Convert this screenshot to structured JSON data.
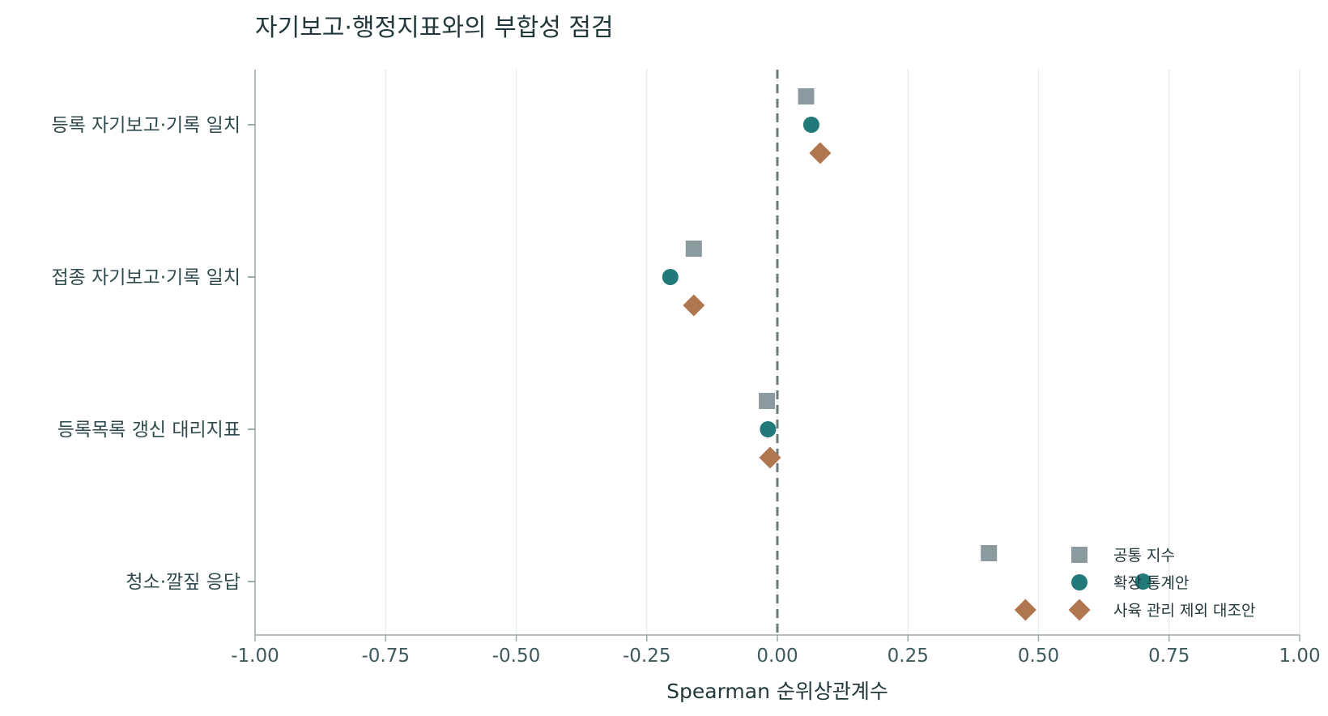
{
  "chart_data": {
    "type": "scatter",
    "title": "자기보고·행정지표와의 부합성 점검",
    "xlabel": "Spearman 순위상관계수",
    "ylabel": "",
    "xlim": [
      -1.0,
      1.0
    ],
    "xticks": [
      "-1.00",
      "-0.75",
      "-0.50",
      "-0.25",
      "0.00",
      "0.25",
      "0.50",
      "0.75",
      "1.00"
    ],
    "categories": [
      "등록 자기보고·기록 일치",
      "접종 자기보고·기록 일치",
      "등록목록 갱신 대리지표",
      "청소·깔짚 응답"
    ],
    "reference_line": {
      "x": 0.0,
      "style": "dashed"
    },
    "grid": "vertical",
    "legend_position": "bottom-right",
    "series": [
      {
        "name": "공통 지수",
        "marker": "square",
        "color": "#8a9a9f",
        "values": [
          0.055,
          -0.16,
          -0.02,
          0.405
        ]
      },
      {
        "name": "확장 통계안",
        "marker": "circle",
        "color": "#22797a",
        "values": [
          0.065,
          -0.205,
          -0.018,
          0.7
        ]
      },
      {
        "name": "사육 관리 제외 대조안",
        "marker": "diamond",
        "color": "#b07650",
        "values": [
          0.082,
          -0.16,
          -0.014,
          0.475
        ]
      }
    ]
  }
}
